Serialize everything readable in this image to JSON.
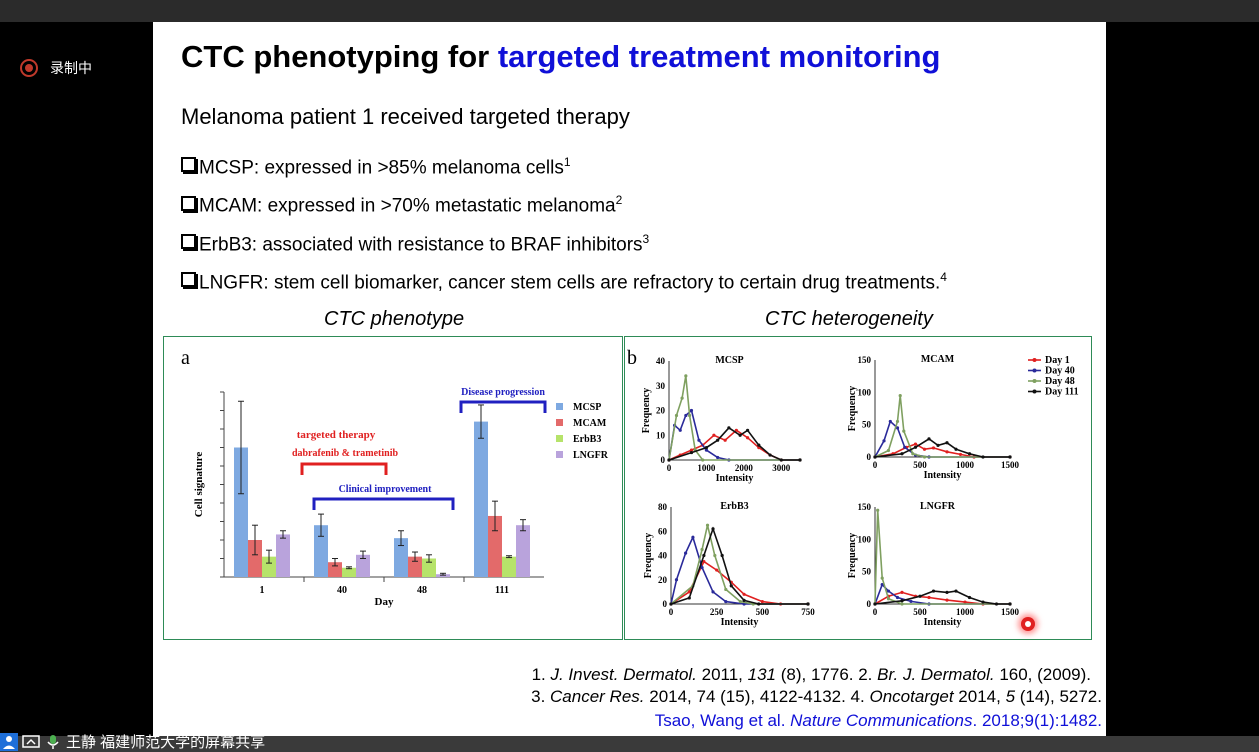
{
  "app": {
    "recording_label": "录制中",
    "share_label": "王静 福建师范大学的屏幕共享"
  },
  "slide": {
    "title_plain": "CTC phenotyping for ",
    "title_highlight": "targeted treatment monitoring",
    "subtitle": "Melanoma patient 1 received targeted therapy",
    "bullets": [
      {
        "text": "MCSP: expressed in >85% melanoma cells",
        "sup": "1"
      },
      {
        "text": "MCAM: expressed in >70% metastatic melanoma",
        "sup": "2"
      },
      {
        "text": "ErbB3: associated with resistance to BRAF inhibitors",
        "sup": "3"
      },
      {
        "text": "LNGFR: stem cell biomarker, cancer stem cells are refractory to certain drug treatments.",
        "sup": "4"
      }
    ],
    "panel_left_title": "CTC phenotype",
    "panel_right_title": "CTC heterogeneity",
    "refs": {
      "line1": {
        "a": "1. ",
        "b": "J. Invest. Dermatol.",
        "c": " 2011, ",
        "d": "131",
        "e": " (8), 1776. 2. ",
        "f": "Br. J. Dermatol.",
        "g": " 160, (2009)."
      },
      "line2": {
        "a": "3. ",
        "b": "Cancer Res.",
        "c": " 2014, 74 (15), 4122-4132. 4. ",
        "d": "Oncotarget",
        "e": " 2014, ",
        "f": "5",
        "g": " (14), 5272."
      },
      "line3": {
        "a": "Tsao, Wang et al. ",
        "b": "Nature Communications",
        "c": ". 2018;9(1):1482."
      }
    }
  },
  "chart_data": [
    {
      "type": "bar",
      "panel_label": "a",
      "categories": [
        "1",
        "40",
        "48",
        "111"
      ],
      "xlabel": "Day",
      "ylabel": "Cell signature",
      "series": [
        {
          "name": "MCSP",
          "color": "#7ea9e1",
          "values": [
            7.0,
            2.8,
            2.1,
            8.4
          ],
          "err": [
            2.5,
            0.6,
            0.4,
            0.9
          ]
        },
        {
          "name": "MCAM",
          "color": "#e36a6a",
          "values": [
            2.0,
            0.8,
            1.1,
            3.3
          ],
          "err": [
            0.8,
            0.2,
            0.25,
            0.8
          ]
        },
        {
          "name": "ErbB3",
          "color": "#b6e36a",
          "values": [
            1.1,
            0.5,
            1.0,
            1.1
          ],
          "err": [
            0.35,
            0.05,
            0.2,
            0.05
          ]
        },
        {
          "name": "LNGFR",
          "color": "#b9a3dc",
          "values": [
            2.3,
            1.2,
            0.15,
            2.8
          ],
          "err": [
            0.2,
            0.2,
            0.05,
            0.3
          ]
        }
      ],
      "ylim": [
        0,
        10
      ],
      "annotations": {
        "therapy": "targeted therapy",
        "drugs": "dabrafenib & trametinib",
        "improvement": "Clinical improvement",
        "progression": "Disease progression"
      }
    },
    {
      "type": "line",
      "panel_label": "b",
      "legend": [
        {
          "name": "Day 1",
          "color": "#e02020"
        },
        {
          "name": "Day 40",
          "color": "#2a2a9a"
        },
        {
          "name": "Day 48",
          "color": "#7fa060"
        },
        {
          "name": "Day 111",
          "color": "#111111"
        }
      ],
      "subplots": [
        {
          "title": "MCSP",
          "ylabel": "Frequency",
          "xlabel": "Intensity",
          "xlim": [
            0,
            3500
          ],
          "ylim": [
            0,
            40
          ],
          "xticks": [
            0,
            1000,
            2000,
            3000
          ],
          "yticks": [
            0,
            10,
            20,
            30,
            40
          ],
          "series": {
            "Day 1": [
              [
                0,
                0
              ],
              [
                300,
                2
              ],
              [
                600,
                4
              ],
              [
                900,
                6
              ],
              [
                1200,
                10
              ],
              [
                1500,
                8
              ],
              [
                1800,
                12
              ],
              [
                2100,
                9
              ],
              [
                2400,
                5
              ],
              [
                2700,
                2
              ],
              [
                3000,
                0
              ],
              [
                3500,
                0
              ]
            ],
            "Day 40": [
              [
                0,
                0
              ],
              [
                150,
                14
              ],
              [
                300,
                12
              ],
              [
                450,
                18
              ],
              [
                600,
                20
              ],
              [
                800,
                8
              ],
              [
                1000,
                4
              ],
              [
                1300,
                1
              ],
              [
                1600,
                0
              ],
              [
                3500,
                0
              ]
            ],
            "Day 48": [
              [
                0,
                0
              ],
              [
                200,
                18
              ],
              [
                350,
                25
              ],
              [
                450,
                34
              ],
              [
                550,
                18
              ],
              [
                700,
                4
              ],
              [
                900,
                0
              ],
              [
                3500,
                0
              ]
            ],
            "Day 111": [
              [
                0,
                0
              ],
              [
                600,
                3
              ],
              [
                1000,
                5
              ],
              [
                1300,
                8
              ],
              [
                1600,
                13
              ],
              [
                1900,
                10
              ],
              [
                2100,
                12
              ],
              [
                2400,
                6
              ],
              [
                2700,
                2
              ],
              [
                3000,
                0
              ],
              [
                3500,
                0
              ]
            ]
          }
        },
        {
          "title": "MCAM",
          "ylabel": "Frequency",
          "xlabel": "Intensity",
          "xlim": [
            0,
            1500
          ],
          "ylim": [
            0,
            150
          ],
          "xticks": [
            0,
            500,
            1000,
            1500
          ],
          "yticks": [
            0,
            50,
            100,
            150
          ],
          "series": {
            "Day 1": [
              [
                0,
                0
              ],
              [
                200,
                5
              ],
              [
                350,
                15
              ],
              [
                450,
                20
              ],
              [
                550,
                12
              ],
              [
                650,
                14
              ],
              [
                800,
                8
              ],
              [
                950,
                4
              ],
              [
                1100,
                0
              ],
              [
                1500,
                0
              ]
            ],
            "Day 40": [
              [
                0,
                0
              ],
              [
                100,
                25
              ],
              [
                170,
                55
              ],
              [
                250,
                45
              ],
              [
                330,
                15
              ],
              [
                450,
                3
              ],
              [
                600,
                0
              ],
              [
                1500,
                0
              ]
            ],
            "Day 48": [
              [
                0,
                0
              ],
              [
                150,
                10
              ],
              [
                250,
                55
              ],
              [
                280,
                95
              ],
              [
                320,
                40
              ],
              [
                420,
                5
              ],
              [
                550,
                0
              ],
              [
                1500,
                0
              ]
            ],
            "Day 111": [
              [
                0,
                0
              ],
              [
                300,
                5
              ],
              [
                450,
                15
              ],
              [
                600,
                28
              ],
              [
                700,
                18
              ],
              [
                800,
                22
              ],
              [
                900,
                12
              ],
              [
                1050,
                5
              ],
              [
                1200,
                0
              ],
              [
                1500,
                0
              ]
            ]
          }
        },
        {
          "title": "ErbB3",
          "ylabel": "Frequency",
          "xlabel": "Intensity",
          "xlim": [
            0,
            750
          ],
          "ylim": [
            0,
            80
          ],
          "xticks": [
            0,
            250,
            500,
            750
          ],
          "yticks": [
            0,
            20,
            40,
            60,
            80
          ],
          "series": {
            "Day 1": [
              [
                0,
                0
              ],
              [
                100,
                10
              ],
              [
                180,
                35
              ],
              [
                250,
                28
              ],
              [
                330,
                18
              ],
              [
                400,
                8
              ],
              [
                500,
                2
              ],
              [
                600,
                0
              ],
              [
                750,
                0
              ]
            ],
            "Day 40": [
              [
                0,
                0
              ],
              [
                30,
                20
              ],
              [
                80,
                42
              ],
              [
                120,
                55
              ],
              [
                170,
                30
              ],
              [
                230,
                10
              ],
              [
                300,
                2
              ],
              [
                400,
                0
              ],
              [
                750,
                0
              ]
            ],
            "Day 48": [
              [
                0,
                0
              ],
              [
                120,
                15
              ],
              [
                170,
                45
              ],
              [
                200,
                65
              ],
              [
                240,
                40
              ],
              [
                300,
                12
              ],
              [
                380,
                2
              ],
              [
                450,
                0
              ],
              [
                750,
                0
              ]
            ],
            "Day 111": [
              [
                0,
                0
              ],
              [
                100,
                5
              ],
              [
                180,
                40
              ],
              [
                230,
                62
              ],
              [
                280,
                40
              ],
              [
                330,
                15
              ],
              [
                400,
                3
              ],
              [
                480,
                0
              ],
              [
                750,
                0
              ]
            ]
          }
        },
        {
          "title": "LNGFR",
          "ylabel": "Frequency",
          "xlabel": "Intensity",
          "xlim": [
            0,
            1500
          ],
          "ylim": [
            0,
            150
          ],
          "xticks": [
            0,
            500,
            1000,
            1500
          ],
          "yticks": [
            0,
            50,
            100,
            150
          ],
          "series": {
            "Day 1": [
              [
                0,
                0
              ],
              [
                150,
                12
              ],
              [
                300,
                18
              ],
              [
                450,
                12
              ],
              [
                600,
                10
              ],
              [
                800,
                6
              ],
              [
                1000,
                3
              ],
              [
                1200,
                0
              ],
              [
                1500,
                0
              ]
            ],
            "Day 40": [
              [
                0,
                0
              ],
              [
                80,
                30
              ],
              [
                150,
                20
              ],
              [
                250,
                10
              ],
              [
                400,
                4
              ],
              [
                600,
                0
              ],
              [
                1500,
                0
              ]
            ],
            "Day 48": [
              [
                0,
                0
              ],
              [
                30,
                145
              ],
              [
                80,
                40
              ],
              [
                150,
                8
              ],
              [
                300,
                0
              ],
              [
                1500,
                0
              ]
            ],
            "Day 111": [
              [
                0,
                0
              ],
              [
                300,
                5
              ],
              [
                500,
                12
              ],
              [
                650,
                20
              ],
              [
                800,
                18
              ],
              [
                900,
                20
              ],
              [
                1050,
                10
              ],
              [
                1200,
                3
              ],
              [
                1350,
                0
              ],
              [
                1500,
                0
              ]
            ]
          }
        }
      ]
    }
  ]
}
